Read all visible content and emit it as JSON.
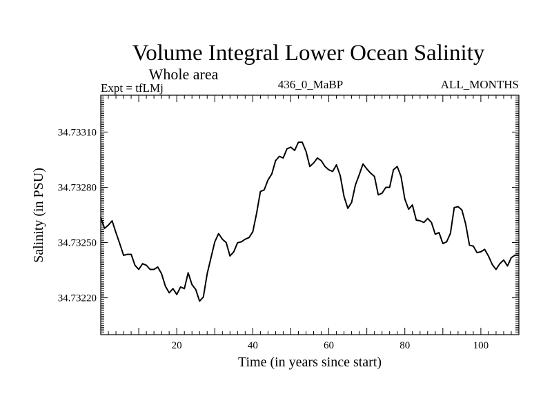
{
  "header": {
    "title": "Volume Integral Lower Ocean Salinity",
    "subtitle": "Whole area",
    "expt": "Expt = tfLMj",
    "run": "436_0_MaBP",
    "months": "ALL_MONTHS"
  },
  "chart_data": {
    "type": "line",
    "title": "Volume Integral Lower Ocean Salinity",
    "subtitle": "Whole area",
    "xlabel": "Time (in years since start)",
    "ylabel": "Salinity (in PSU)",
    "xlim": [
      0,
      110
    ],
    "ylim": [
      34.732,
      34.7333
    ],
    "x_ticks": [
      20,
      40,
      60,
      80,
      100
    ],
    "x_tick_labels": [
      "20",
      "40",
      "60",
      "80",
      "100"
    ],
    "y_ticks": [
      34.7322,
      34.7325,
      34.7328,
      34.7331
    ],
    "y_tick_labels": [
      "34.73220",
      "34.73250",
      "34.73280",
      "34.73310"
    ],
    "grid": false,
    "series": [
      {
        "name": "Salinity",
        "color": "#000000",
        "x": [
          0,
          1,
          2,
          3,
          4,
          5,
          6,
          7,
          8,
          9,
          10,
          11,
          12,
          13,
          14,
          15,
          16,
          17,
          18,
          19,
          20,
          21,
          22,
          23,
          24,
          25,
          26,
          27,
          28,
          29,
          30,
          31,
          32,
          33,
          34,
          35,
          36,
          37,
          38,
          39,
          40,
          41,
          42,
          43,
          44,
          45,
          46,
          47,
          48,
          49,
          50,
          51,
          52,
          53,
          54,
          55,
          56,
          57,
          58,
          59,
          60,
          61,
          62,
          63,
          64,
          65,
          66,
          67,
          68,
          69,
          70,
          71,
          72,
          73,
          74,
          75,
          76,
          77,
          78,
          79,
          80,
          81,
          82,
          83,
          84,
          85,
          86,
          87,
          88,
          89,
          90,
          91,
          92,
          93,
          94,
          95,
          96,
          97,
          98,
          99,
          100,
          101,
          102,
          103,
          104,
          105,
          106,
          107,
          108,
          109,
          110
        ],
        "values": [
          34.732636,
          34.732577,
          34.732595,
          34.732618,
          34.732554,
          34.732495,
          34.732431,
          34.732436,
          34.732436,
          34.732377,
          34.732354,
          34.732385,
          34.732377,
          34.732354,
          34.732354,
          34.732367,
          34.732331,
          34.732263,
          34.732227,
          34.73225,
          34.732218,
          34.732259,
          34.73225,
          34.732336,
          34.732272,
          34.732245,
          34.732182,
          34.732204,
          34.732331,
          34.732418,
          34.732504,
          34.732549,
          34.732518,
          34.7325,
          34.732427,
          34.73245,
          34.732499,
          34.732504,
          34.732518,
          34.732527,
          34.732559,
          34.732659,
          34.732777,
          34.732786,
          34.73284,
          34.732872,
          34.732945,
          34.732968,
          34.732959,
          34.733009,
          34.733018,
          34.733,
          34.733045,
          34.733045,
          34.732995,
          34.732913,
          34.732932,
          34.732959,
          34.732945,
          34.732913,
          34.732895,
          34.732886,
          34.732922,
          34.732863,
          34.73275,
          34.732686,
          34.732718,
          34.732813,
          34.732868,
          34.732927,
          34.7329,
          34.732877,
          34.732859,
          34.732759,
          34.732768,
          34.7328,
          34.7328,
          34.732895,
          34.732913,
          34.732859,
          34.732736,
          34.732681,
          34.732704,
          34.732622,
          34.732618,
          34.732609,
          34.732631,
          34.732609,
          34.732545,
          34.732554,
          34.732495,
          34.732504,
          34.73255,
          34.73269,
          34.732695,
          34.732677,
          34.7326,
          34.732486,
          34.732481,
          34.732445,
          34.73245,
          34.732463,
          34.732427,
          34.732381,
          34.732354,
          34.732386,
          34.732405,
          34.732373,
          34.732418,
          34.732432,
          34.732432
        ]
      }
    ]
  }
}
